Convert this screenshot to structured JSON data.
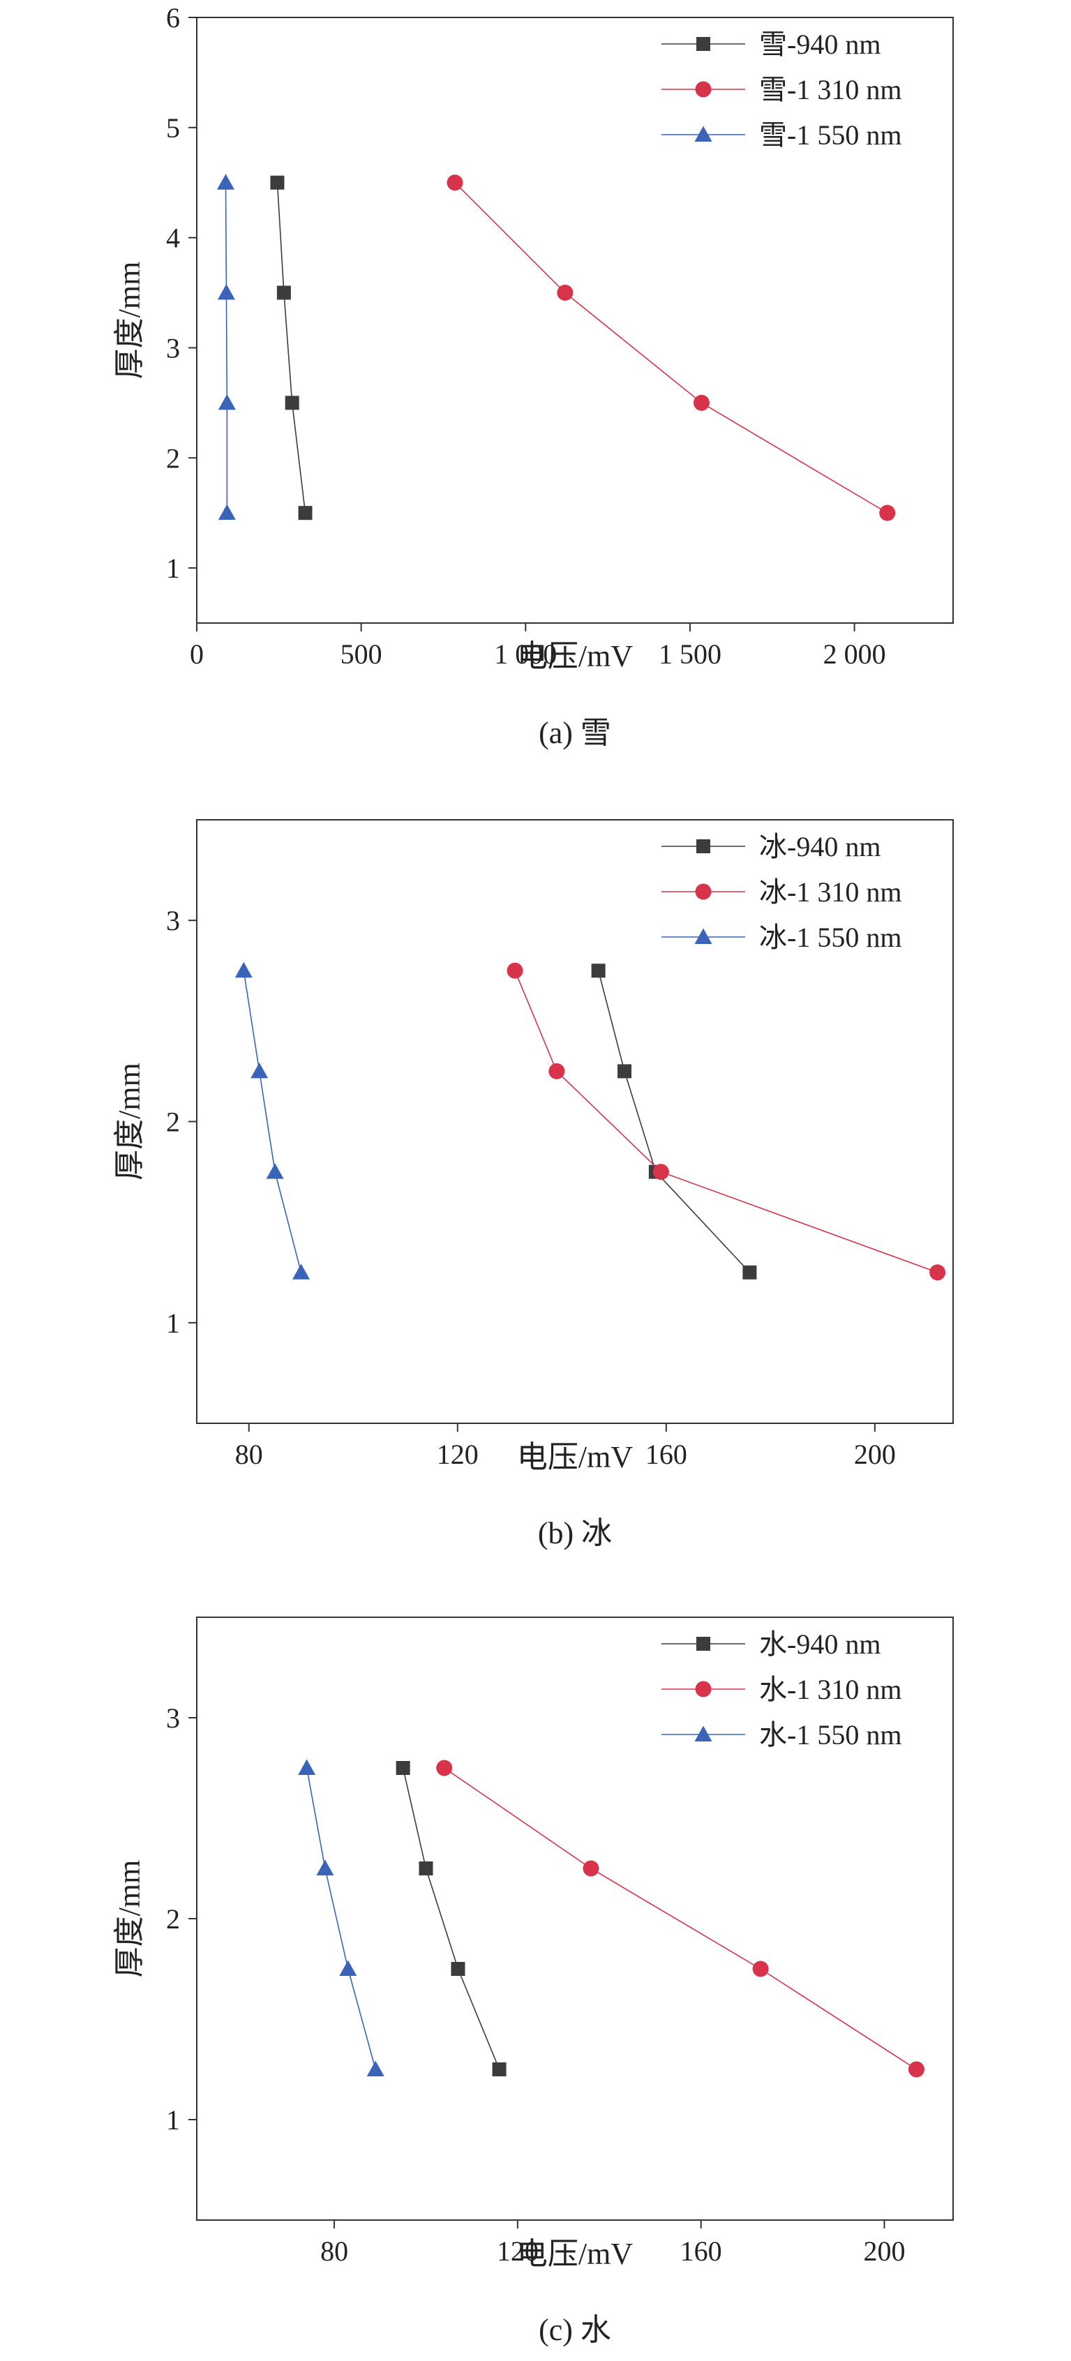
{
  "colors": {
    "series_940": "#3c3c3c",
    "series_1310": "#d7334a",
    "series_1550": "#3a64b8",
    "axis": "#333333"
  },
  "chart_data": [
    {
      "type": "line",
      "caption": "(a) 雪",
      "xlabel": "电压/mV",
      "ylabel": "厚度/mm",
      "xlim": [
        0,
        2300
      ],
      "ylim": [
        0.5,
        6
      ],
      "xticks": [
        0,
        500,
        1000,
        1500,
        2000
      ],
      "xtick_labels": [
        "0",
        "500",
        "1 000",
        "1 500",
        "2 000"
      ],
      "yticks": [
        1,
        2,
        3,
        4,
        5,
        6
      ],
      "ytick_labels": [
        "1",
        "2",
        "3",
        "4",
        "5",
        "6"
      ],
      "legend_position": "top-right",
      "series": [
        {
          "name": "雪-940 nm",
          "marker": "square",
          "color": "#3c3c3c",
          "points": [
            [
              245,
              4.5
            ],
            [
              265,
              3.5
            ],
            [
              290,
              2.5
            ],
            [
              330,
              1.5
            ]
          ]
        },
        {
          "name": "雪-1 310 nm",
          "marker": "circle",
          "color": "#d7334a",
          "points": [
            [
              785,
              4.5
            ],
            [
              1120,
              3.5
            ],
            [
              1535,
              2.5
            ],
            [
              2100,
              1.5
            ]
          ]
        },
        {
          "name": "雪-1 550 nm",
          "marker": "triangle",
          "color": "#3a64b8",
          "points": [
            [
              88,
              4.5
            ],
            [
              90,
              3.5
            ],
            [
              92,
              2.5
            ],
            [
              92,
              1.5
            ]
          ]
        }
      ]
    },
    {
      "type": "line",
      "caption": "(b) 冰",
      "xlabel": "电压/mV",
      "ylabel": "厚度/mm",
      "xlim": [
        70,
        215
      ],
      "ylim": [
        0.5,
        3.5
      ],
      "xticks": [
        80,
        120,
        160,
        200
      ],
      "xtick_labels": [
        "80",
        "120",
        "160",
        "200"
      ],
      "yticks": [
        1,
        2,
        3
      ],
      "ytick_labels": [
        "1",
        "2",
        "3"
      ],
      "legend_position": "top-right",
      "series": [
        {
          "name": "冰-940 nm",
          "marker": "square",
          "color": "#3c3c3c",
          "points": [
            [
              147,
              2.75
            ],
            [
              152,
              2.25
            ],
            [
              158,
              1.75
            ],
            [
              176,
              1.25
            ]
          ]
        },
        {
          "name": "冰-1 310 nm",
          "marker": "circle",
          "color": "#d7334a",
          "points": [
            [
              131,
              2.75
            ],
            [
              139,
              2.25
            ],
            [
              159,
              1.75
            ],
            [
              212,
              1.25
            ]
          ]
        },
        {
          "name": "冰-1 550 nm",
          "marker": "triangle",
          "color": "#3a64b8",
          "points": [
            [
              79,
              2.75
            ],
            [
              82,
              2.25
            ],
            [
              85,
              1.75
            ],
            [
              90,
              1.25
            ]
          ]
        }
      ]
    },
    {
      "type": "line",
      "caption": "(c) 水",
      "xlabel": "电压/mV",
      "ylabel": "厚度/mm",
      "xlim": [
        50,
        215
      ],
      "ylim": [
        0.5,
        3.5
      ],
      "xticks": [
        80,
        120,
        160,
        200
      ],
      "xtick_labels": [
        "80",
        "120",
        "160",
        "200"
      ],
      "yticks": [
        1,
        2,
        3
      ],
      "ytick_labels": [
        "1",
        "2",
        "3"
      ],
      "legend_position": "top-right",
      "series": [
        {
          "name": "水-940 nm",
          "marker": "square",
          "color": "#3c3c3c",
          "points": [
            [
              95,
              2.75
            ],
            [
              100,
              2.25
            ],
            [
              107,
              1.75
            ],
            [
              116,
              1.25
            ]
          ]
        },
        {
          "name": "水-1 310 nm",
          "marker": "circle",
          "color": "#d7334a",
          "points": [
            [
              104,
              2.75
            ],
            [
              136,
              2.25
            ],
            [
              173,
              1.75
            ],
            [
              207,
              1.25
            ]
          ]
        },
        {
          "name": "水-1 550 nm",
          "marker": "triangle",
          "color": "#3a64b8",
          "points": [
            [
              74,
              2.75
            ],
            [
              78,
              2.25
            ],
            [
              83,
              1.75
            ],
            [
              89,
              1.25
            ]
          ]
        }
      ]
    }
  ]
}
